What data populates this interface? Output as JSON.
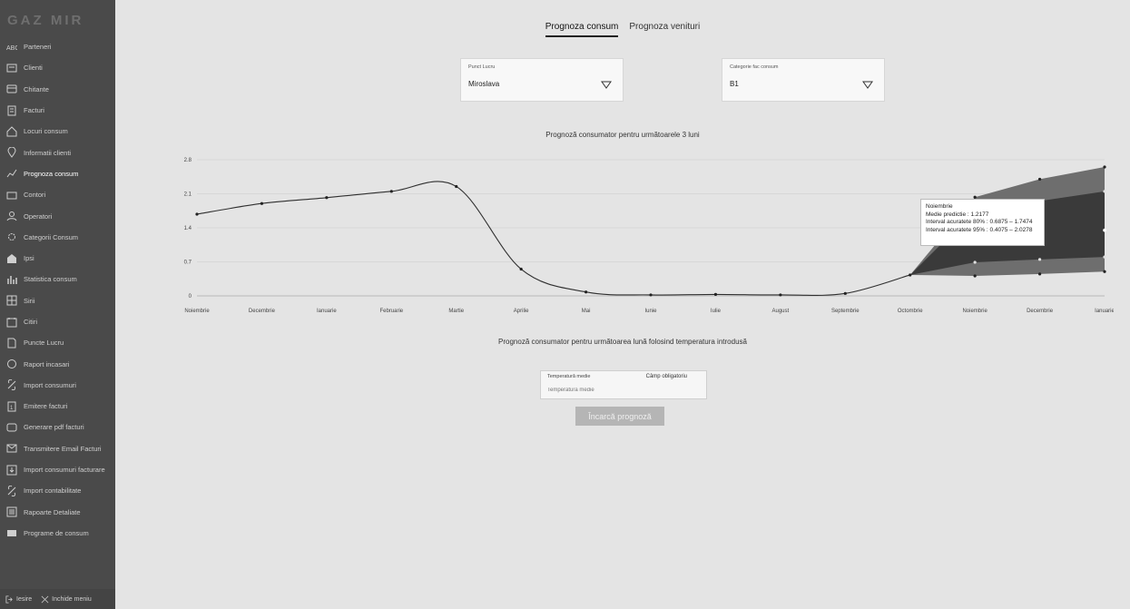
{
  "app": {
    "logo": "GAZ MIR"
  },
  "sidebar": {
    "items": [
      {
        "label": "Parteneri",
        "icon": "abc-icon"
      },
      {
        "label": "Clienti",
        "icon": "clients-icon"
      },
      {
        "label": "Chitante",
        "icon": "receipt-icon"
      },
      {
        "label": "Facturi",
        "icon": "invoice-icon"
      },
      {
        "label": "Locuri consum",
        "icon": "home-icon"
      },
      {
        "label": "Informatii clienti",
        "icon": "location-icon"
      },
      {
        "label": "Prognoza consum",
        "icon": "chart-line-icon",
        "active": true
      },
      {
        "label": "Contori",
        "icon": "meter-icon"
      },
      {
        "label": "Operatori",
        "icon": "user-icon"
      },
      {
        "label": "Categorii Consum",
        "icon": "settings-icon"
      },
      {
        "label": "Ipsi",
        "icon": "building-icon"
      },
      {
        "label": "Statistica consum",
        "icon": "bar-chart-icon"
      },
      {
        "label": "Sirii",
        "icon": "grid-icon"
      },
      {
        "label": "Citiri",
        "icon": "clock-icon"
      },
      {
        "label": "Puncte Lucru",
        "icon": "document-icon"
      },
      {
        "label": "Raport incasari",
        "icon": "report-icon"
      },
      {
        "label": "Import consumuri",
        "icon": "link-icon"
      },
      {
        "label": "Emitere facturi",
        "icon": "invoice-issue-icon"
      },
      {
        "label": "Generare pdf facturi",
        "icon": "pdf-icon"
      },
      {
        "label": "Transmitere Email Facturi",
        "icon": "mail-icon"
      },
      {
        "label": "Import consumuri facturare",
        "icon": "import-icon"
      },
      {
        "label": "Import contabilitate",
        "icon": "link-icon"
      },
      {
        "label": "Rapoarte Detaliate",
        "icon": "list-icon"
      },
      {
        "label": "Programe de consum",
        "icon": "program-icon"
      }
    ],
    "footer": {
      "logout": "Iesire",
      "close_menu": "Inchide meniu"
    }
  },
  "tabs": [
    {
      "label": "Prognoza consum",
      "active": true
    },
    {
      "label": "Prognoza venituri",
      "active": false
    }
  ],
  "filters": {
    "work_point": {
      "label": "Punct Lucru",
      "value": "Miroslava"
    },
    "category": {
      "label": "Categorie fac consum",
      "value": "B1"
    }
  },
  "forecast_chart": {
    "title": "Prognoză consumator pentru următoarele 3 luni"
  },
  "tooltip": {
    "month": "Noiembrie",
    "mean": "Medie predictie : 1.2177",
    "interval80": "Interval acuratete 80% : 0.6875 – 1.7474",
    "interval95": "Interval acuratete 95% : 0.4075 – 2.0278"
  },
  "chart_data": {
    "type": "line",
    "title": "Prognoză consumator pentru următoarele 3 luni",
    "categories": [
      "Noiembrie",
      "Decembrie",
      "Ianuarie",
      "Februarie",
      "Martie",
      "Aprilie",
      "Mai",
      "Iunie",
      "Iulie",
      "August",
      "Septembrie",
      "Octombrie",
      "Noiembrie",
      "Decembrie",
      "Ianuarie"
    ],
    "yticks": [
      "0",
      "0.7",
      "1.4",
      "2.1",
      "2.8"
    ],
    "ylim": [
      0,
      2.8
    ],
    "series": [
      {
        "values": [
          1.68,
          1.9,
          2.02,
          2.15,
          2.25,
          0.55,
          0.08,
          0.02,
          0.03,
          0.02,
          0.05,
          0.43,
          null,
          null,
          null
        ]
      }
    ],
    "forecast": {
      "start_index": 11,
      "mean": [
        0.43,
        1.22,
        1.2,
        1.35
      ],
      "ci80_low": [
        0.43,
        0.69,
        0.75,
        0.8
      ],
      "ci80_high": [
        0.43,
        1.75,
        1.95,
        2.15
      ],
      "ci95_low": [
        0.43,
        0.41,
        0.45,
        0.5
      ],
      "ci95_high": [
        0.43,
        2.03,
        2.4,
        2.65
      ]
    },
    "grid": true,
    "legend": "none",
    "colors": {
      "line": "#2f2f2f",
      "ci80": "#3a3a3a",
      "ci95": "#6e6e6e",
      "point": "#222222"
    }
  },
  "temperature_forecast": {
    "title": "Prognoză consumator pentru următoarea lună folosind temperatura introdusă",
    "field_label": "Temperatură medie",
    "required_text": "Câmp obligatoriu",
    "placeholder": "Temperatură medie",
    "button_label": "Încarcă prognoză"
  }
}
